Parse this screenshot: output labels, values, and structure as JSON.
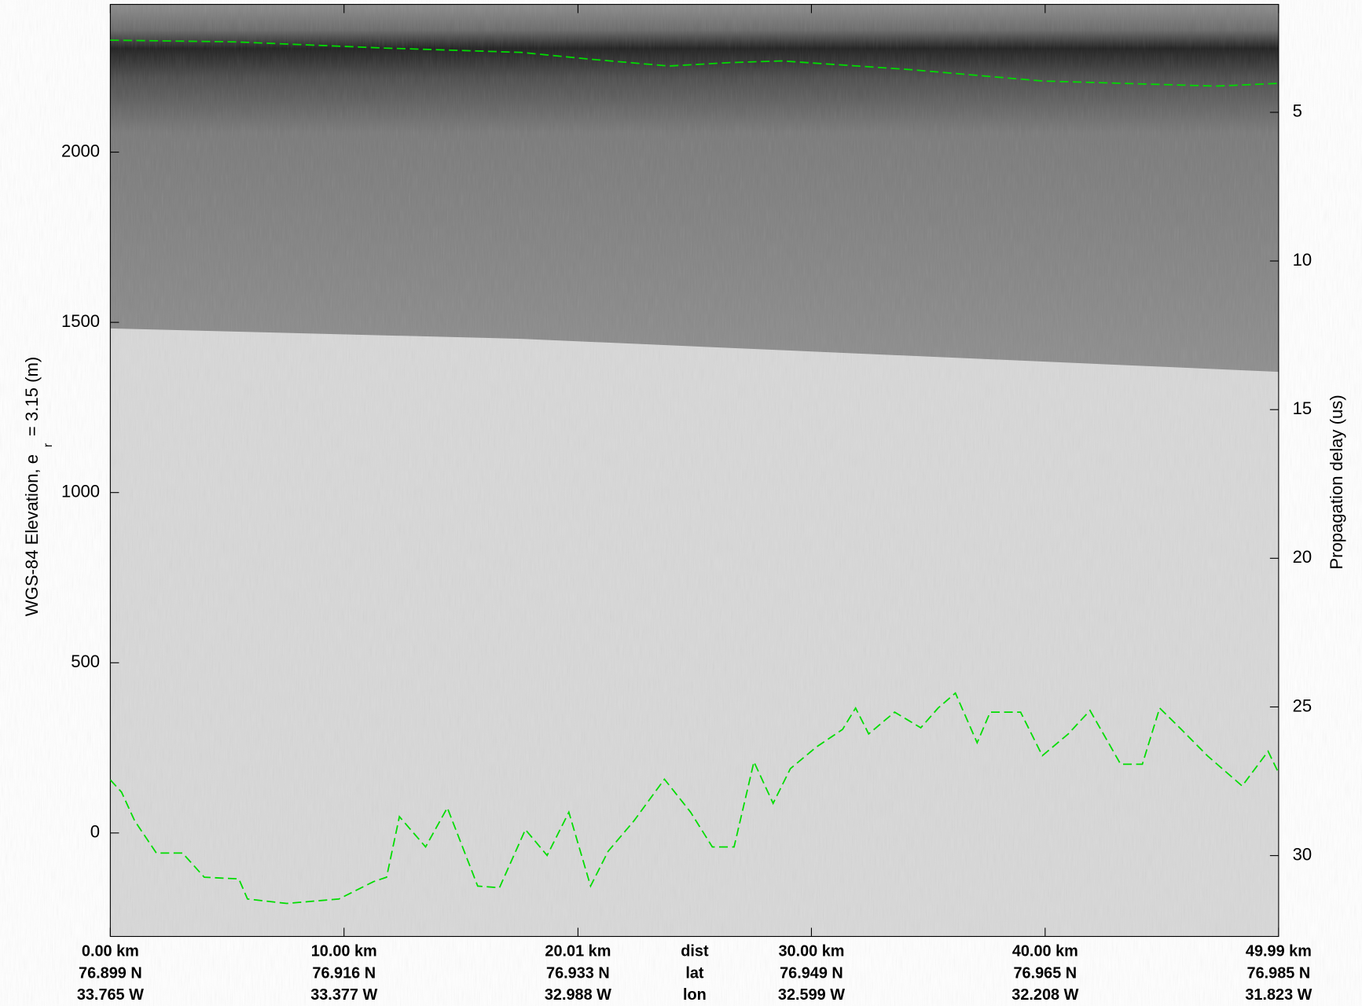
{
  "chart_data": {
    "type": "line",
    "ylabel": {
      "main": "WGS-84 Elevation, e",
      "sub": "r",
      "tail": "= 3.15 (m)"
    },
    "y2label": "Propagation delay (us)",
    "xlim": [
      0,
      49.99
    ],
    "ylim": [
      -304,
      2434
    ],
    "y2lim": [
      32.72,
      1.37
    ],
    "yticks": [
      0,
      500,
      1000,
      1500,
      2000
    ],
    "y2ticks": [
      5,
      10,
      15,
      20,
      25,
      30
    ],
    "xticks": [
      {
        "value": 0,
        "label": "0.00 km"
      },
      {
        "value": 10,
        "label": "10.00 km"
      },
      {
        "value": 20.01,
        "label": "20.01 km"
      },
      {
        "value": 30,
        "label": "30.00 km"
      },
      {
        "value": 40,
        "label": "40.00 km"
      },
      {
        "value": 49.99,
        "label": "49.99 km"
      }
    ],
    "xtick_name": "dist",
    "lat_row": {
      "name": "lat",
      "labels": [
        "76.899 N",
        "76.916 N",
        "76.933 N",
        "76.949 N",
        "76.965 N",
        "76.985 N"
      ]
    },
    "lon_row": {
      "name": "lon",
      "labels": [
        "33.765 W",
        "33.377 W",
        "32.988 W",
        "32.599 W",
        "32.208 W",
        "31.823 W"
      ]
    },
    "line_style": "dashed",
    "series": [
      {
        "color": "#00dd00",
        "x": [
          0,
          5.31,
          11.63,
          17.58,
          20.55,
          23.9,
          26.5,
          28.73,
          34.31,
          39.88,
          47.31,
          49.99
        ],
        "values": [
          2329,
          2324,
          2306,
          2293,
          2273,
          2253,
          2263,
          2268,
          2242,
          2209,
          2194,
          2202
        ]
      },
      {
        "color": "#00dd00",
        "x": [
          0,
          0.48,
          1.04,
          1.97,
          3.09,
          4.02,
          5.5,
          5.87,
          7.55,
          9.78,
          11.26,
          11.82,
          12.37,
          13.49,
          14.42,
          15.72,
          16.65,
          17.76,
          18.69,
          19.62,
          20.55,
          21.3,
          22.41,
          23.71,
          24.83,
          25.76,
          26.69,
          27.54,
          28.36,
          29.1,
          30.22,
          31.33,
          31.89,
          32.45,
          33.56,
          34.68,
          35.42,
          36.16,
          37.09,
          37.65,
          38.95,
          39.88,
          40.99,
          41.92,
          43.23,
          44.16,
          44.9,
          45.83,
          46.94,
          48.43,
          49.54,
          49.99
        ],
        "values": [
          156,
          120,
          36,
          -59,
          -59,
          -130,
          -135,
          -194,
          -207,
          -194,
          -143,
          -130,
          48,
          -41,
          74,
          -156,
          -161,
          10,
          -66,
          61,
          -156,
          -54,
          36,
          158,
          61,
          -41,
          -41,
          209,
          87,
          189,
          253,
          304,
          367,
          291,
          355,
          309,
          367,
          411,
          265,
          355,
          355,
          227,
          291,
          360,
          202,
          202,
          367,
          304,
          227,
          138,
          240,
          176
        ]
      }
    ]
  }
}
